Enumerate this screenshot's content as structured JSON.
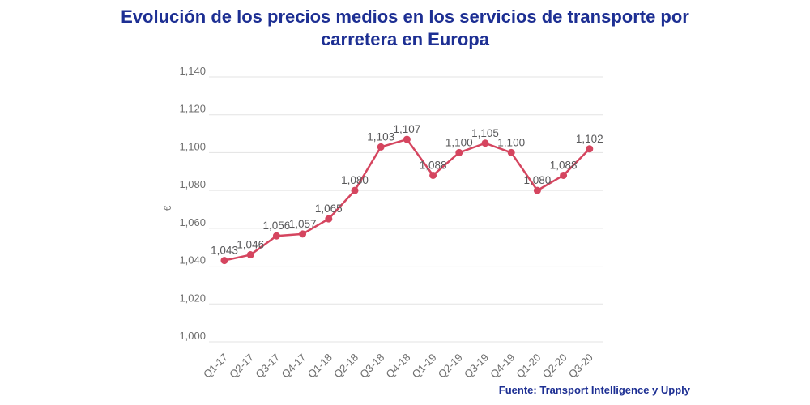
{
  "title_lines": [
    "Evolución de los precios medios en los servicios de transporte por",
    "carretera en Europa"
  ],
  "source": "Fuente: Transport Intelligence y Upply",
  "colors": {
    "title": "#1d2f93",
    "source": "#1d2f93",
    "line": "#d5455f",
    "marker": "#d5455f",
    "value_label": "#58585a",
    "tick_label": "#6e6e6e",
    "grid": "#e3e3e3",
    "axis_title": "#7a7a7a"
  },
  "chart_data": {
    "type": "line",
    "title": "Evolución de los precios medios en los servicios de transporte por carretera en Europa",
    "categories": [
      "Q1-17",
      "Q2-17",
      "Q3-17",
      "Q4-17",
      "Q1-18",
      "Q2-18",
      "Q3-18",
      "Q4-18",
      "Q1-19",
      "Q2-19",
      "Q3-19",
      "Q4-19",
      "Q1-20",
      "Q2-20",
      "Q3-20"
    ],
    "values": [
      1043,
      1046,
      1056,
      1057,
      1065,
      1080,
      1103,
      1107,
      1088,
      1100,
      1105,
      1100,
      1080,
      1088,
      1102
    ],
    "value_labels": [
      "1,043",
      "1,046",
      "1,056",
      "1,057",
      "1,065",
      "1,080",
      "1,103",
      "1,107",
      "1,088",
      "1,100",
      "1,105",
      "1,100",
      "1,080",
      "1,088",
      "1,102"
    ],
    "xlabel": "",
    "ylabel": "€",
    "ylim": [
      1000,
      1140
    ],
    "ytick_step": 20,
    "ytick_labels": [
      "1,000",
      "1,020",
      "1,040",
      "1,060",
      "1,080",
      "1,100",
      "1,120",
      "1,140"
    ],
    "grid": true,
    "legend": "none",
    "x_tick_rotation": -45
  }
}
